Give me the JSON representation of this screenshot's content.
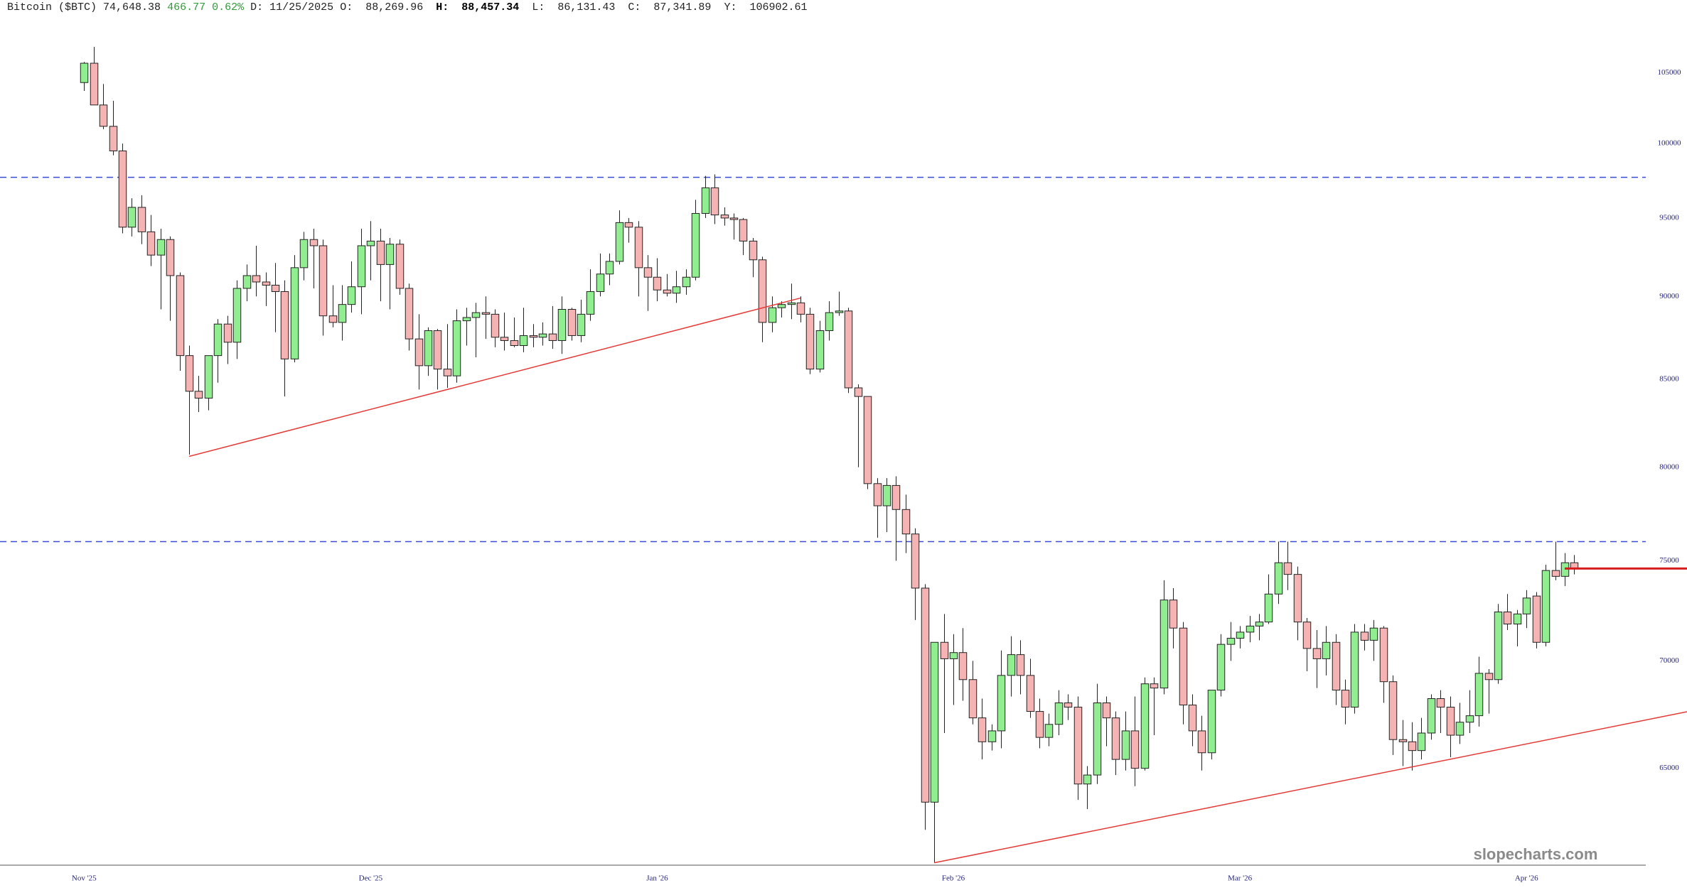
{
  "header": {
    "name": "Bitcoin ($BTC)",
    "last": "74,648.38",
    "change": "466.77",
    "change_pct": "0.62%",
    "date_label": "D:",
    "date": "11/25/2025",
    "o_label": "O:",
    "o": "88,269.96",
    "h_label": "H:",
    "h": "88,457.34",
    "l_label": "L:",
    "l": "86,131.43",
    "c_label": "C:",
    "c": "87,341.89",
    "y_label": "Y:",
    "y": "106902.61"
  },
  "watermark": "slopecharts.com",
  "chart_data": {
    "type": "candlestick",
    "categories": [
      "Nov '25",
      null,
      null,
      null,
      null,
      null,
      null,
      null,
      null,
      null,
      null,
      null,
      null,
      null,
      null,
      null,
      null,
      null,
      null,
      null,
      null,
      null,
      null,
      null,
      null,
      null,
      null,
      null,
      null,
      null,
      "Dec '25",
      null,
      null,
      null,
      null,
      null,
      null,
      null,
      null,
      null,
      null,
      null,
      null,
      null,
      null,
      null,
      null,
      null,
      null,
      null,
      null,
      null,
      null,
      null,
      null,
      null,
      null,
      null,
      null,
      null,
      "Jan '26",
      null,
      null,
      null,
      null,
      null,
      null,
      null,
      null,
      null,
      null,
      null,
      null,
      null,
      null,
      null,
      null,
      null,
      null,
      null,
      null,
      null,
      null,
      null,
      null,
      null,
      null,
      null,
      null,
      null,
      null,
      "Feb '26",
      null,
      null,
      null,
      null,
      null,
      null,
      null,
      null,
      null,
      null,
      null,
      null,
      null,
      null,
      null,
      null,
      null,
      null,
      null,
      null,
      null,
      null,
      null,
      null,
      null,
      null,
      null,
      null,
      null,
      "Mar '26",
      null,
      null,
      null,
      null,
      null,
      null,
      null,
      null,
      null,
      null,
      null,
      null,
      null,
      null,
      null,
      null,
      null,
      null,
      null,
      null,
      null,
      null,
      null,
      null,
      null,
      null,
      null,
      null,
      null,
      "Apr '26",
      null,
      null,
      null,
      null,
      null
    ],
    "open": [
      104300,
      105700,
      102700,
      101200,
      99500,
      94400,
      95700,
      94100,
      92600,
      93600,
      91300,
      86400,
      84300,
      83900,
      86400,
      88300,
      87200,
      90500,
      91300,
      90900,
      90700,
      90300,
      86200,
      91800,
      93600,
      93200,
      88800,
      88400,
      89500,
      90600,
      93200,
      93500,
      92000,
      93300,
      90500,
      87400,
      85800,
      87900,
      85600,
      85200,
      88500,
      88700,
      89000,
      88900,
      87500,
      87300,
      87000,
      87600,
      87500,
      87700,
      87300,
      89200,
      87600,
      88900,
      90300,
      91400,
      92200,
      94700,
      94400,
      91800,
      91200,
      90400,
      90200,
      90600,
      91200,
      95300,
      97000,
      95200,
      95000,
      94900,
      93500,
      92300,
      88400,
      89300,
      89500,
      89600,
      88900,
      85600,
      87900,
      89000,
      89100,
      84500,
      84000,
      79100,
      77900,
      79000,
      77700,
      76400,
      73600,
      63500,
      70900,
      70100,
      70400,
      69100,
      67300,
      66200,
      66700,
      69300,
      70300,
      69300,
      67600,
      66400,
      67000,
      68000,
      67800,
      64300,
      64700,
      68000,
      67300,
      65400,
      66700,
      65000,
      68900,
      68700,
      73000,
      71600,
      67900,
      66700,
      65700,
      68600,
      70800,
      71100,
      71400,
      71700,
      71900,
      73300,
      74900,
      74300,
      71900,
      70600,
      70100,
      70900,
      68600,
      67800,
      71400,
      71000,
      71600,
      69000,
      66300,
      66200,
      65800,
      66600,
      68200,
      67800,
      66500,
      67100,
      67400,
      69400,
      69100,
      72400,
      71800,
      72300,
      73200,
      70900,
      74500,
      74200,
      74900
    ],
    "high": [
      105800,
      106900,
      104200,
      103000,
      100000,
      96300,
      96500,
      95200,
      94300,
      93800,
      91500,
      87000,
      85200,
      86400,
      88600,
      88800,
      91000,
      92000,
      93200,
      91500,
      92100,
      91000,
      92600,
      94100,
      94300,
      93600,
      90700,
      90700,
      92200,
      94300,
      94800,
      94300,
      93700,
      93600,
      90800,
      88900,
      88100,
      88000,
      88300,
      89200,
      89300,
      89600,
      90000,
      89200,
      89000,
      88700,
      89300,
      88300,
      88400,
      89400,
      90000,
      89300,
      89800,
      91700,
      92700,
      92700,
      95500,
      95000,
      94800,
      92600,
      92400,
      91400,
      91600,
      91700,
      96200,
      97800,
      97900,
      95700,
      95300,
      95000,
      93700,
      92500,
      90000,
      89700,
      90800,
      90000,
      89300,
      88500,
      89700,
      90300,
      89300,
      84700,
      84000,
      79400,
      79400,
      79500,
      78500,
      76700,
      73800,
      70900,
      72300,
      71300,
      71600,
      70000,
      68200,
      67000,
      70500,
      71200,
      71000,
      70100,
      68200,
      67500,
      68600,
      68400,
      68300,
      65100,
      68900,
      68300,
      67600,
      67600,
      68300,
      69200,
      69200,
      74000,
      73600,
      71900,
      68400,
      67400,
      68600,
      71300,
      71900,
      71700,
      72200,
      72300,
      74300,
      76000,
      76000,
      74700,
      72100,
      71500,
      71700,
      71300,
      69100,
      71800,
      71800,
      72000,
      71700,
      69300,
      67200,
      67100,
      67300,
      68400,
      68600,
      68300,
      68000,
      68600,
      70200,
      69600,
      72800,
      73300,
      72500,
      73500,
      73400,
      74800,
      76000,
      75400,
      75300
    ],
    "low": [
      103700,
      102700,
      101000,
      99200,
      94000,
      93800,
      93300,
      91900,
      89200,
      88500,
      85500,
      80700,
      83100,
      83200,
      84800,
      85900,
      86200,
      89700,
      90000,
      89400,
      87800,
      84000,
      86000,
      91000,
      90500,
      87600,
      88100,
      87300,
      89000,
      88900,
      91000,
      89700,
      89200,
      90100,
      86700,
      84400,
      85200,
      84400,
      84500,
      84800,
      87000,
      86300,
      87400,
      86900,
      86700,
      86900,
      86600,
      86900,
      87000,
      86800,
      86500,
      87300,
      87200,
      88500,
      90000,
      90700,
      92000,
      93400,
      90000,
      89100,
      89700,
      90000,
      89600,
      90100,
      91000,
      95000,
      94600,
      94500,
      93600,
      92600,
      91200,
      87200,
      87800,
      88700,
      88600,
      88400,
      85300,
      85400,
      87300,
      88800,
      84200,
      80000,
      78800,
      76200,
      76500,
      75000,
      75400,
      72000,
      62300,
      60900,
      66600,
      67900,
      68100,
      67000,
      65400,
      65800,
      65900,
      68300,
      68400,
      67300,
      65900,
      66000,
      66500,
      67200,
      63600,
      63200,
      64300,
      66000,
      64700,
      64900,
      64200,
      64900,
      66500,
      68400,
      70600,
      67000,
      66000,
      64900,
      65400,
      68300,
      70000,
      70600,
      70900,
      71000,
      71800,
      72800,
      73500,
      71000,
      69500,
      68700,
      69300,
      67900,
      67000,
      67500,
      70500,
      70000,
      68000,
      65600,
      65100,
      64900,
      65400,
      66300,
      66600,
      65500,
      66100,
      66600,
      66900,
      67500,
      68900,
      71500,
      70700,
      71600,
      70600,
      70700,
      74000,
      73700,
      74300
    ],
    "close": [
      105700,
      102700,
      101200,
      99500,
      94400,
      95700,
      94100,
      92600,
      93600,
      91300,
      86400,
      84300,
      83900,
      86400,
      88300,
      87200,
      90500,
      91300,
      90900,
      90700,
      90300,
      86200,
      91800,
      93600,
      93200,
      88800,
      88400,
      89500,
      90600,
      93200,
      93500,
      92000,
      93300,
      90500,
      87400,
      85800,
      87900,
      85600,
      85200,
      88500,
      88700,
      89000,
      88900,
      87500,
      87300,
      87000,
      87600,
      87500,
      87700,
      87300,
      89200,
      87600,
      88900,
      90300,
      91400,
      92200,
      94700,
      94400,
      91800,
      91200,
      90400,
      90200,
      90600,
      91200,
      95300,
      97000,
      95200,
      95000,
      94900,
      93500,
      92300,
      88400,
      89300,
      89500,
      89600,
      88900,
      85600,
      87900,
      89000,
      89100,
      84500,
      84000,
      79100,
      77900,
      79000,
      77700,
      76400,
      73600,
      63500,
      70900,
      70100,
      70400,
      69100,
      67300,
      66200,
      66700,
      69300,
      70300,
      69300,
      67600,
      66400,
      67000,
      68000,
      67800,
      64300,
      64700,
      68000,
      67300,
      65400,
      66700,
      65000,
      68900,
      68700,
      73000,
      71600,
      67900,
      66700,
      65700,
      68600,
      70800,
      71100,
      71400,
      71700,
      71900,
      73300,
      74900,
      74300,
      71900,
      70600,
      70100,
      70900,
      68600,
      67800,
      71400,
      71000,
      71600,
      69000,
      66300,
      66200,
      65800,
      66600,
      68200,
      67800,
      66500,
      67100,
      67400,
      69400,
      69100,
      72400,
      71800,
      72300,
      73100,
      70900,
      74500,
      74200,
      74900,
      74600
    ],
    "up_color": "#90ee90",
    "down_color": "#f5b3b3",
    "log_scale": true,
    "xlim": [
      -8.8,
      167.8
    ],
    "ylim": [
      60800,
      108800
    ],
    "yticks": [
      65000,
      70000,
      75000,
      80000,
      85000,
      90000,
      95000,
      100000,
      105000
    ],
    "levels": [
      97700,
      76000
    ],
    "level_color": "#3a4bd6",
    "trendlines": [
      {
        "x": [
          11,
          75
        ],
        "values": [
          80600,
          89900
        ]
      },
      {
        "x": [
          89,
          156
        ],
        "values": [
          60900,
          66540
        ],
        "extend": "right"
      }
    ],
    "trend_color": "#e53935",
    "last_level": {
      "value": 74600,
      "from": 155,
      "color": "#d81b1b"
    }
  }
}
